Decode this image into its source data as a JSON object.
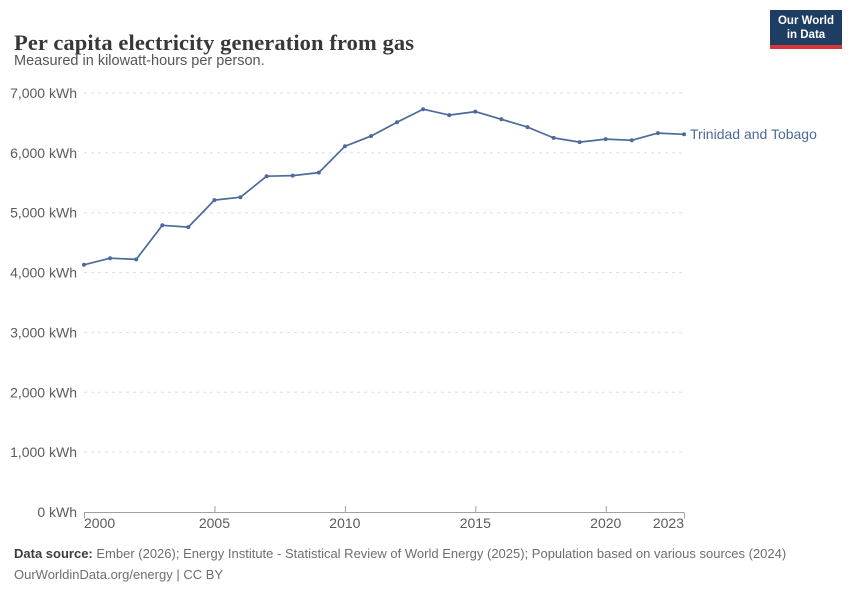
{
  "header": {
    "title": "Per capita electricity generation from gas",
    "subtitle": "Measured in kilowatt-hours per person.",
    "logo": {
      "line1": "Our World",
      "line2": "in Data",
      "bg_color": "#1d3d63",
      "accent_color": "#d8363a"
    }
  },
  "chart_data": {
    "type": "line",
    "title": "Per capita electricity generation from gas",
    "unit": "kWh",
    "x": [
      2000,
      2001,
      2002,
      2003,
      2004,
      2005,
      2006,
      2007,
      2008,
      2009,
      2010,
      2011,
      2012,
      2013,
      2014,
      2015,
      2016,
      2017,
      2018,
      2019,
      2020,
      2021,
      2022,
      2023
    ],
    "series": [
      {
        "name": "Trinidad and Tobago",
        "color": "#4c6a9c",
        "values": [
          4130,
          4240,
          4220,
          4790,
          4760,
          5210,
          5260,
          5610,
          5620,
          5670,
          6110,
          6280,
          6510,
          6730,
          6630,
          6690,
          6560,
          6430,
          6250,
          6180,
          6230,
          6210,
          6330,
          6310
        ]
      }
    ],
    "xlim": [
      2000,
      2023
    ],
    "ylim": [
      0,
      7000
    ],
    "xticks": [
      2000,
      2005,
      2010,
      2015,
      2020,
      2023
    ],
    "yticks": [
      0,
      1000,
      2000,
      3000,
      4000,
      5000,
      6000,
      7000
    ],
    "ytick_suffix": " kWh",
    "grid": "horizontal-dashed",
    "legend_position": "right-of-line",
    "grid_color": "#dedede",
    "axis_color": "#a1a1a1",
    "tick_label_color": "#5b5b5b"
  },
  "footer": {
    "source_label": "Data source:",
    "source_text": " Ember (2026); Energy Institute - Statistical Review of World Energy (2025); Population based on various sources (2024)",
    "citation_line": "OurWorldinData.org/energy | CC BY"
  }
}
